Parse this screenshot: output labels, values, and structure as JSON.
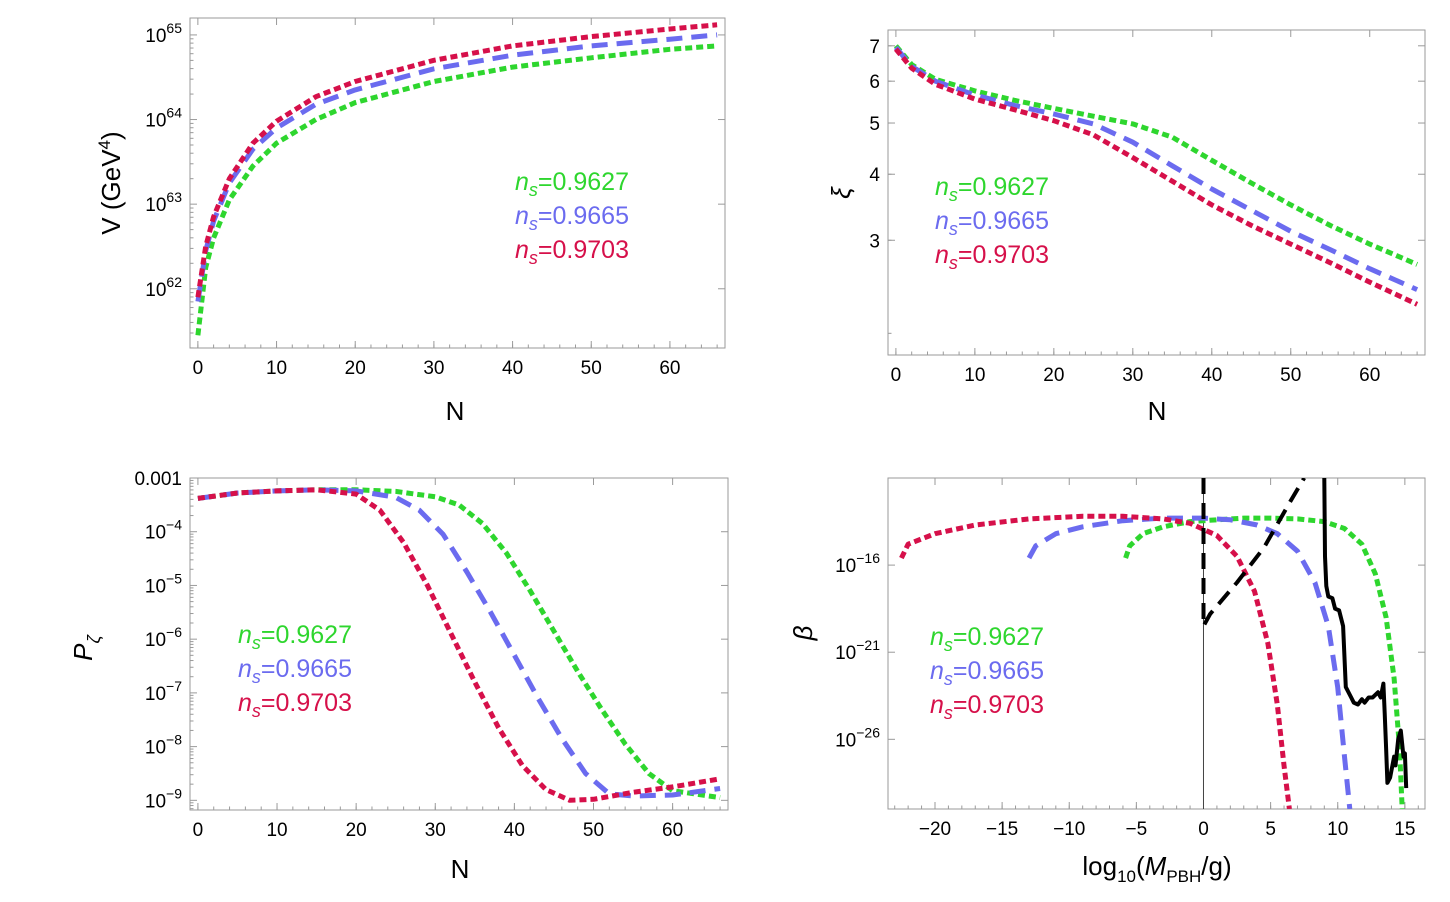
{
  "colors": {
    "green": "#2ed62e",
    "blue": "#6b6bef",
    "red": "#d6104a",
    "black": "#000000",
    "frame": "#9a9a9a"
  },
  "legend": [
    {
      "sym": "n",
      "sub": "s",
      "val": "=0.9627",
      "color": "green"
    },
    {
      "sym": "n",
      "sub": "s",
      "val": "=0.9665",
      "color": "blue"
    },
    {
      "sym": "n",
      "sub": "s",
      "val": "=0.9703",
      "color": "red"
    }
  ],
  "chart_data": [
    {
      "id": "V",
      "type": "line",
      "title": "",
      "xlabel": "N",
      "ylabel": "V (GeV4)",
      "ylabel_parts": {
        "main": "V (GeV",
        "sup": "4",
        "tail": ")"
      },
      "xlim": [
        -1,
        67
      ],
      "ylim_log10": [
        61.3,
        65.2
      ],
      "xticks": [
        0,
        10,
        20,
        30,
        40,
        50,
        60
      ],
      "yticks": [
        {
          "exp": 62,
          "base": "10",
          "sup": "62"
        },
        {
          "exp": 63,
          "base": "10",
          "sup": "63"
        },
        {
          "exp": 64,
          "base": "10",
          "sup": "64"
        },
        {
          "exp": 65,
          "base": "10",
          "sup": "65"
        }
      ],
      "series": [
        {
          "name": "n_s=0.9627",
          "color": "green",
          "dash": "dot",
          "x": [
            0,
            1,
            2,
            4,
            7,
            10,
            15,
            20,
            30,
            40,
            50,
            60,
            66
          ],
          "log10y": [
            61.45,
            62.25,
            62.6,
            63.05,
            63.45,
            63.72,
            64.0,
            64.2,
            64.45,
            64.62,
            64.73,
            64.83,
            64.87
          ]
        },
        {
          "name": "n_s=0.9665",
          "color": "blue",
          "dash": "dash",
          "x": [
            0,
            1,
            2,
            4,
            7,
            10,
            15,
            20,
            30,
            40,
            50,
            60,
            66
          ],
          "log10y": [
            61.85,
            62.45,
            62.8,
            63.25,
            63.65,
            63.9,
            64.18,
            64.35,
            64.6,
            64.76,
            64.87,
            64.95,
            65.0
          ]
        },
        {
          "name": "n_s=0.9703",
          "color": "red",
          "dash": "dot",
          "x": [
            0,
            1,
            2,
            4,
            7,
            10,
            15,
            20,
            30,
            40,
            50,
            60,
            66
          ],
          "log10y": [
            61.9,
            62.5,
            62.85,
            63.3,
            63.72,
            63.98,
            64.27,
            64.45,
            64.7,
            64.87,
            64.98,
            65.07,
            65.12
          ]
        }
      ]
    },
    {
      "id": "xi",
      "type": "line",
      "title": "",
      "xlabel": "N",
      "ylabel": "ξ",
      "xlim": [
        -1,
        67
      ],
      "ylim_log10": [
        0.26,
        0.875
      ],
      "xticks": [
        0,
        10,
        20,
        30,
        40,
        50,
        60
      ],
      "yticks": [
        {
          "value": 3,
          "label": "3"
        },
        {
          "value": 4,
          "label": "4"
        },
        {
          "value": 5,
          "label": "5"
        },
        {
          "value": 6,
          "label": "6"
        },
        {
          "value": 7,
          "label": "7"
        }
      ],
      "series": [
        {
          "name": "n_s=0.9627",
          "color": "green",
          "dash": "dot",
          "x": [
            0,
            2,
            5,
            10,
            15,
            20,
            25,
            30,
            35,
            40,
            45,
            50,
            55,
            60,
            66
          ],
          "y": [
            7.0,
            6.45,
            6.05,
            5.75,
            5.52,
            5.33,
            5.15,
            4.98,
            4.7,
            4.25,
            3.85,
            3.5,
            3.2,
            2.95,
            2.7
          ]
        },
        {
          "name": "n_s=0.9665",
          "color": "blue",
          "dash": "dash",
          "x": [
            0,
            2,
            5,
            10,
            15,
            20,
            25,
            30,
            35,
            40,
            45,
            50,
            55,
            60,
            66
          ],
          "y": [
            6.95,
            6.4,
            6.0,
            5.65,
            5.4,
            5.2,
            4.98,
            4.6,
            4.15,
            3.75,
            3.42,
            3.12,
            2.88,
            2.65,
            2.42
          ]
        },
        {
          "name": "n_s=0.9703",
          "color": "red",
          "dash": "dot",
          "x": [
            0,
            2,
            5,
            10,
            15,
            20,
            25,
            30,
            35,
            40,
            45,
            50,
            55,
            60,
            66
          ],
          "y": [
            6.9,
            6.35,
            5.92,
            5.55,
            5.3,
            5.05,
            4.75,
            4.3,
            3.88,
            3.5,
            3.2,
            2.95,
            2.72,
            2.5,
            2.27
          ]
        }
      ]
    },
    {
      "id": "P",
      "type": "line",
      "title": "",
      "xlabel": "N",
      "ylabel": "Pζ",
      "ylabel_parts": {
        "main": "P",
        "sub": "ζ"
      },
      "xlim": [
        -1,
        67
      ],
      "ylim_log10": [
        -9.18,
        -3.0
      ],
      "xticks": [
        0,
        10,
        20,
        30,
        40,
        50,
        60
      ],
      "yticks": [
        {
          "exp": -3,
          "label": "0.001"
        },
        {
          "exp": -4,
          "base": "10",
          "sup": "−4"
        },
        {
          "exp": -5,
          "base": "10",
          "sup": "−5"
        },
        {
          "exp": -6,
          "base": "10",
          "sup": "−6"
        },
        {
          "exp": -7,
          "base": "10",
          "sup": "−7"
        },
        {
          "exp": -8,
          "base": "10",
          "sup": "−8"
        },
        {
          "exp": -9,
          "base": "10",
          "sup": "−9"
        }
      ],
      "series": [
        {
          "name": "n_s=0.9627",
          "color": "green",
          "dash": "dot",
          "x": [
            0,
            5,
            10,
            15,
            20,
            25,
            30,
            33,
            36,
            39,
            42,
            45,
            48,
            51,
            54,
            57,
            60,
            66
          ],
          "log10y": [
            -3.38,
            -3.28,
            -3.24,
            -3.22,
            -3.22,
            -3.25,
            -3.35,
            -3.5,
            -3.85,
            -4.4,
            -5.1,
            -5.85,
            -6.6,
            -7.3,
            -7.95,
            -8.5,
            -8.82,
            -8.95
          ]
        },
        {
          "name": "n_s=0.9665",
          "color": "blue",
          "dash": "dash",
          "x": [
            0,
            5,
            10,
            15,
            20,
            25,
            28,
            31,
            34,
            37,
            40,
            43,
            46,
            49,
            52,
            55,
            60,
            66
          ],
          "log10y": [
            -3.38,
            -3.28,
            -3.24,
            -3.22,
            -3.24,
            -3.36,
            -3.6,
            -4.05,
            -4.75,
            -5.5,
            -6.3,
            -7.1,
            -7.85,
            -8.5,
            -8.88,
            -8.92,
            -8.9,
            -8.78
          ]
        },
        {
          "name": "n_s=0.9703",
          "color": "red",
          "dash": "dot",
          "x": [
            0,
            5,
            10,
            15,
            20,
            23,
            26,
            29,
            32,
            35,
            38,
            41,
            44,
            47,
            50,
            55,
            60,
            66
          ],
          "log10y": [
            -3.38,
            -3.28,
            -3.24,
            -3.22,
            -3.3,
            -3.6,
            -4.2,
            -5.0,
            -5.9,
            -6.8,
            -7.65,
            -8.35,
            -8.8,
            -9.0,
            -8.98,
            -8.85,
            -8.75,
            -8.6
          ]
        }
      ]
    },
    {
      "id": "beta",
      "type": "line",
      "title": "",
      "xlabel": "log10(MPBH/g)",
      "ylabel": "β",
      "xlabel_parts": {
        "pre": "log",
        "sub": "10",
        "open": "(",
        "it": "M",
        "itsub": "PBH",
        "post": "/g)"
      },
      "xlim": [
        -23.5,
        16.5
      ],
      "ylim_log10": [
        -30,
        -11
      ],
      "xticks": [
        -20,
        -15,
        -10,
        -5,
        0,
        5,
        10,
        15
      ],
      "xtick_labels": [
        "−20",
        "−15",
        "−10",
        "−5",
        "0",
        "5",
        "10",
        "15"
      ],
      "yticks": [
        {
          "exp": -16,
          "base": "10",
          "sup": "−16"
        },
        {
          "exp": -21,
          "base": "10",
          "sup": "−21"
        },
        {
          "exp": -26,
          "base": "10",
          "sup": "−26"
        }
      ],
      "series": [
        {
          "name": "n_s=0.9627",
          "color": "green",
          "dash": "dot",
          "x": [
            -5.8,
            -5.5,
            -4.5,
            -3,
            -1,
            1,
            3,
            5,
            7,
            9,
            10.5,
            11.8,
            12.8,
            13.6,
            14.2,
            14.6,
            14.8
          ],
          "log10y": [
            -15.6,
            -14.9,
            -14.2,
            -13.8,
            -13.5,
            -13.4,
            -13.3,
            -13.3,
            -13.35,
            -13.5,
            -13.9,
            -14.8,
            -16.5,
            -19,
            -22.5,
            -26.5,
            -30
          ]
        },
        {
          "name": "n_s=0.9665",
          "color": "blue",
          "dash": "dash",
          "x": [
            -13,
            -12.5,
            -11,
            -9,
            -6,
            -3,
            0,
            2,
            4,
            5.5,
            7,
            8.3,
            9.3,
            10.0,
            10.5,
            10.9
          ],
          "log10y": [
            -15.6,
            -14.9,
            -14.2,
            -13.8,
            -13.45,
            -13.3,
            -13.3,
            -13.4,
            -13.7,
            -14.2,
            -15.2,
            -17,
            -19.5,
            -23,
            -27,
            -30
          ]
        },
        {
          "name": "n_s=0.9703",
          "color": "red",
          "dash": "dot",
          "x": [
            -22.5,
            -22,
            -20,
            -17,
            -13,
            -9,
            -6,
            -3,
            -1,
            1,
            2.5,
            3.8,
            4.8,
            5.5,
            6.0,
            6.4
          ],
          "log10y": [
            -15.6,
            -14.8,
            -14.2,
            -13.7,
            -13.35,
            -13.2,
            -13.2,
            -13.35,
            -13.6,
            -14.3,
            -15.5,
            -17.5,
            -20.5,
            -24,
            -27.5,
            -30
          ]
        },
        {
          "name": "constraint-dashed",
          "color": "black",
          "dash": "dash",
          "x": [
            0.0,
            0.0,
            0.5,
            2.5,
            4.5,
            6.5,
            7.5
          ],
          "log10y": [
            -11,
            -19.5,
            -18.8,
            -17,
            -15,
            -12.3,
            -11
          ]
        },
        {
          "name": "constraint-solid",
          "color": "black",
          "dash": "solid",
          "x": [
            9.0,
            9.05,
            9.15,
            9.3,
            9.6,
            9.8,
            10.1,
            10.4,
            10.6,
            11.0,
            11.2,
            11.5,
            11.8,
            12.0,
            12.3,
            12.6,
            13.0,
            13.2,
            13.4,
            13.5,
            13.6,
            13.7,
            13.9,
            14.2,
            14.3,
            14.5,
            14.7,
            14.9,
            15.0,
            15.1
          ],
          "log10y": [
            -11,
            -15.5,
            -17.2,
            -17.8,
            -17.9,
            -18.5,
            -18.6,
            -19.5,
            -23.0,
            -23.6,
            -23.9,
            -24.0,
            -23.7,
            -23.9,
            -23.6,
            -23.6,
            -23.3,
            -23.6,
            -22.8,
            -24.5,
            -26.5,
            -28.5,
            -28.2,
            -27.0,
            -27.5,
            -26.0,
            -25.5,
            -27.0,
            -26.8,
            -28.8
          ]
        }
      ],
      "vline_x": 0
    }
  ]
}
